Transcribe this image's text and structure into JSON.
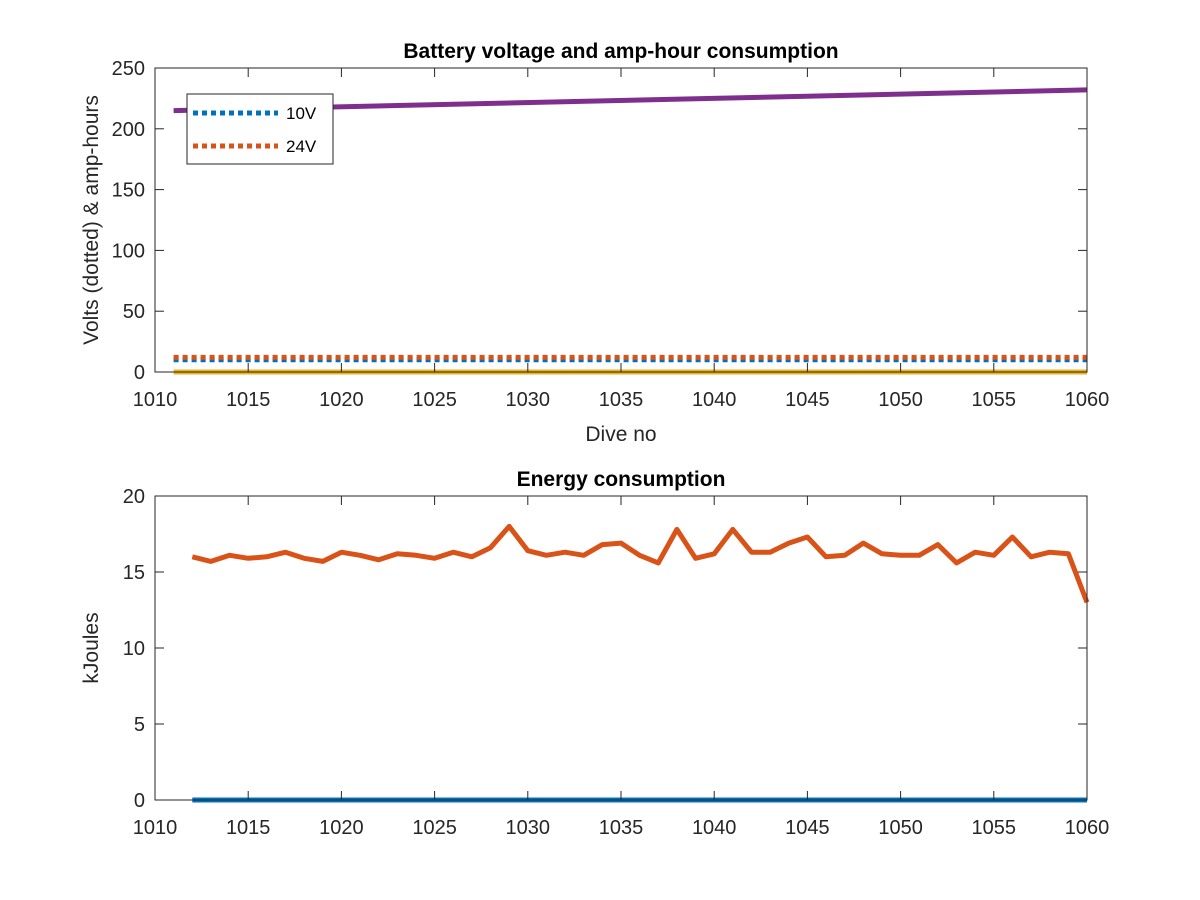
{
  "chart_data": [
    {
      "type": "line",
      "title": "Battery voltage and amp-hour consumption",
      "xlabel": "Dive no",
      "ylabel": "Volts (dotted) & amp-hours",
      "xlim": [
        1010,
        1060
      ],
      "ylim": [
        0,
        250
      ],
      "xticks": [
        "1010",
        "1015",
        "1020",
        "1025",
        "1030",
        "1035",
        "1040",
        "1045",
        "1050",
        "1055",
        "1060"
      ],
      "yticks": [
        "0",
        "50",
        "100",
        "150",
        "200",
        "250"
      ],
      "grid": false,
      "legend": "top-left",
      "series": [
        {
          "name": "10V",
          "color": "#0072BD",
          "style": "dotted",
          "x": [
            1011,
            1060
          ],
          "y": [
            10,
            10
          ]
        },
        {
          "name": "24V",
          "color": "#D95319",
          "style": "dotted",
          "x": [
            1011,
            1060
          ],
          "y": [
            12,
            12
          ]
        },
        {
          "color": "#EDB120",
          "style": "solid",
          "x": [
            1011,
            1060
          ],
          "y": [
            0,
            0
          ]
        },
        {
          "color": "#7E2F8E",
          "style": "solid",
          "x": [
            1011,
            1060
          ],
          "y": [
            215,
            232
          ]
        }
      ]
    },
    {
      "type": "line",
      "title": "Energy consumption",
      "xlabel": "",
      "ylabel": "kJoules",
      "xlim": [
        1010,
        1060
      ],
      "ylim": [
        0,
        20
      ],
      "xticks": [
        "1010",
        "1015",
        "1020",
        "1025",
        "1030",
        "1035",
        "1040",
        "1045",
        "1050",
        "1055",
        "1060"
      ],
      "yticks": [
        "0",
        "5",
        "10",
        "15",
        "20"
      ],
      "grid": false,
      "series": [
        {
          "color": "#0072BD",
          "style": "solid",
          "x": [
            1012,
            1060
          ],
          "y": [
            0,
            0
          ]
        },
        {
          "color": "#D95319",
          "style": "solid",
          "x": [
            1012,
            1013,
            1014,
            1015,
            1016,
            1017,
            1018,
            1019,
            1020,
            1021,
            1022,
            1023,
            1024,
            1025,
            1026,
            1027,
            1028,
            1029,
            1030,
            1031,
            1032,
            1033,
            1034,
            1035,
            1036,
            1037,
            1038,
            1039,
            1040,
            1041,
            1042,
            1043,
            1044,
            1045,
            1046,
            1047,
            1048,
            1049,
            1050,
            1051,
            1052,
            1053,
            1054,
            1055,
            1056,
            1057,
            1058,
            1059,
            1060
          ],
          "y": [
            16.0,
            15.7,
            16.1,
            15.9,
            16.0,
            16.3,
            15.9,
            15.7,
            16.3,
            16.1,
            15.8,
            16.2,
            16.1,
            15.9,
            16.3,
            16.0,
            16.6,
            18.0,
            16.4,
            16.1,
            16.3,
            16.1,
            16.8,
            16.9,
            16.1,
            15.6,
            17.8,
            15.9,
            16.2,
            17.8,
            16.3,
            16.3,
            16.9,
            17.3,
            16.0,
            16.1,
            16.9,
            16.2,
            16.1,
            16.1,
            16.8,
            15.6,
            16.3,
            16.1,
            17.3,
            16.0,
            16.3,
            16.2,
            13.0
          ]
        }
      ]
    }
  ]
}
